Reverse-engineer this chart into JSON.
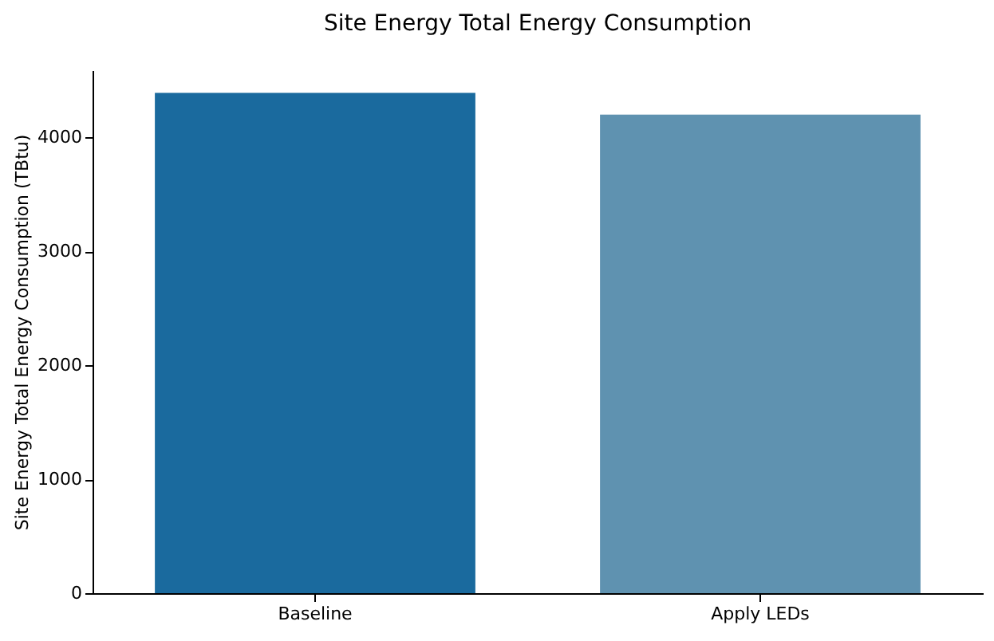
{
  "chart_data": {
    "type": "bar",
    "title": "Site Energy Total Energy Consumption",
    "ylabel": "Site Energy Total Energy Consumption (TBtu)",
    "categories": [
      "Baseline",
      "Apply LEDs"
    ],
    "values": [
      4390,
      4200
    ],
    "colors": [
      "#1a6a9e",
      "#5f92b0"
    ],
    "ylim": [
      0,
      4590
    ],
    "yticks": [
      0,
      1000,
      2000,
      3000,
      4000
    ],
    "grid": false
  }
}
